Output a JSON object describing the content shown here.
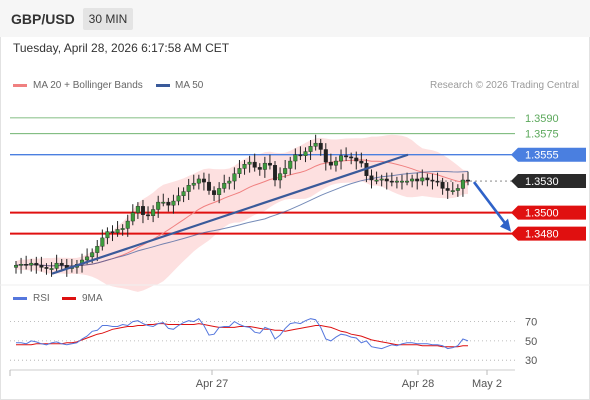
{
  "header": {
    "symbol": "GBP/USD",
    "timeframe": "30 MIN"
  },
  "timestamp": "Tuesday, April 28, 2026 6:17:58 AM CET",
  "legend": {
    "ma20_label": "MA 20 + Bollinger Bands",
    "ma50_label": "MA 50",
    "rsi_label": "RSI",
    "ma9_label": "9MA",
    "credit": "Research © 2026 Trading Central"
  },
  "colors": {
    "ma20": "#f08080",
    "ma50": "#3a5a9a",
    "bollinger_fill": "#fde0e0",
    "resistance": "#5ba85b",
    "pivot": "#4a7fe0",
    "support": "#e01010",
    "rsi": "#5577dd",
    "ma9": "#dd1111",
    "arrow": "#2f62c8"
  },
  "chart_data": [
    {
      "type": "candlestick",
      "title": "GBP/USD",
      "timeframe": "30 MIN",
      "x_tick_labels": [
        "Apr 27",
        "Apr 28",
        "May 2"
      ],
      "ylim": [
        1.3436,
        1.3607
      ],
      "y_levels": [
        {
          "value": 1.359,
          "label": "1.3590",
          "kind": "resistance"
        },
        {
          "value": 1.3575,
          "label": "1.3575",
          "kind": "resistance"
        },
        {
          "value": 1.3555,
          "label": "1.3555",
          "kind": "pivot"
        },
        {
          "value": 1.353,
          "label": "1.3530",
          "kind": "last_price"
        },
        {
          "value": 1.35,
          "label": "1.3500",
          "kind": "support"
        },
        {
          "value": 1.348,
          "label": "1.3480",
          "kind": "support"
        }
      ],
      "close_approx": [
        1.345,
        1.3451,
        1.345,
        1.3452,
        1.345,
        1.3448,
        1.3447,
        1.3447,
        1.3452,
        1.345,
        1.3447,
        1.3448,
        1.3451,
        1.3455,
        1.3458,
        1.3462,
        1.3468,
        1.3476,
        1.3482,
        1.3481,
        1.3484,
        1.3485,
        1.3492,
        1.35,
        1.3506,
        1.3498,
        1.3497,
        1.3503,
        1.351,
        1.351,
        1.3507,
        1.3511,
        1.3516,
        1.352,
        1.3526,
        1.3528,
        1.3532,
        1.3529,
        1.3521,
        1.3517,
        1.3523,
        1.3528,
        1.353,
        1.3537,
        1.3542,
        1.3546,
        1.3548,
        1.3543,
        1.3541,
        1.3547,
        1.3545,
        1.3531,
        1.3537,
        1.3542,
        1.3549,
        1.3555,
        1.3554,
        1.3558,
        1.3563,
        1.3566,
        1.356,
        1.3548,
        1.3545,
        1.3549,
        1.3554,
        1.3553,
        1.3552,
        1.3549,
        1.3547,
        1.3535,
        1.3531,
        1.3531,
        1.3532,
        1.353,
        1.3529,
        1.353,
        1.353,
        1.353,
        1.3532,
        1.353,
        1.3533,
        1.3531,
        1.353,
        1.3529,
        1.3523,
        1.3521,
        1.3521,
        1.3523,
        1.3531,
        1.353
      ],
      "trend_line": {
        "from_value": 1.3442,
        "to_value": 1.3555
      },
      "projection_arrow": {
        "from_value": 1.353,
        "to_value": 1.348
      },
      "series": [
        {
          "name": "MA 20 + Bollinger Bands"
        },
        {
          "name": "MA 50"
        }
      ]
    },
    {
      "type": "line",
      "title": "RSI",
      "ylim": [
        25,
        80
      ],
      "y_ticks": [
        30,
        50,
        70
      ],
      "series": [
        {
          "name": "RSI",
          "values": [
            48,
            48,
            47,
            50,
            49,
            47,
            46,
            48,
            49,
            47,
            46,
            47,
            48,
            52,
            55,
            60,
            61,
            66,
            66,
            65,
            65,
            67,
            66,
            70,
            71,
            68,
            66,
            65,
            68,
            69,
            63,
            62,
            66,
            69,
            71,
            70,
            73,
            66,
            56,
            57,
            64,
            65,
            65,
            70,
            67,
            65,
            64,
            59,
            58,
            64,
            62,
            52,
            56,
            63,
            68,
            69,
            68,
            71,
            73,
            72,
            64,
            52,
            50,
            54,
            57,
            56,
            54,
            53,
            48,
            50,
            44,
            43,
            42,
            44,
            46,
            45,
            47,
            48,
            48,
            47,
            47,
            47,
            46,
            46,
            45,
            42,
            43,
            45,
            52,
            50
          ]
        },
        {
          "name": "9MA",
          "values": [
            46,
            46,
            46,
            46,
            47,
            47,
            47,
            47,
            47,
            47,
            48,
            48,
            49,
            51,
            53,
            55,
            57,
            58,
            60,
            62,
            63,
            64,
            65,
            65,
            66,
            66,
            67,
            67,
            68,
            68,
            67,
            67,
            67,
            67,
            67,
            67,
            68,
            67,
            66,
            65,
            64,
            64,
            64,
            64,
            65,
            65,
            65,
            64,
            63,
            62,
            62,
            61,
            61,
            60,
            61,
            62,
            63,
            64,
            65,
            66,
            66,
            65,
            64,
            62,
            60,
            59,
            57,
            56,
            55,
            53,
            51,
            50,
            49,
            48,
            47,
            46,
            46,
            46,
            46,
            46,
            45,
            45,
            45,
            45,
            44,
            44,
            44,
            44,
            45,
            45
          ]
        }
      ]
    }
  ]
}
